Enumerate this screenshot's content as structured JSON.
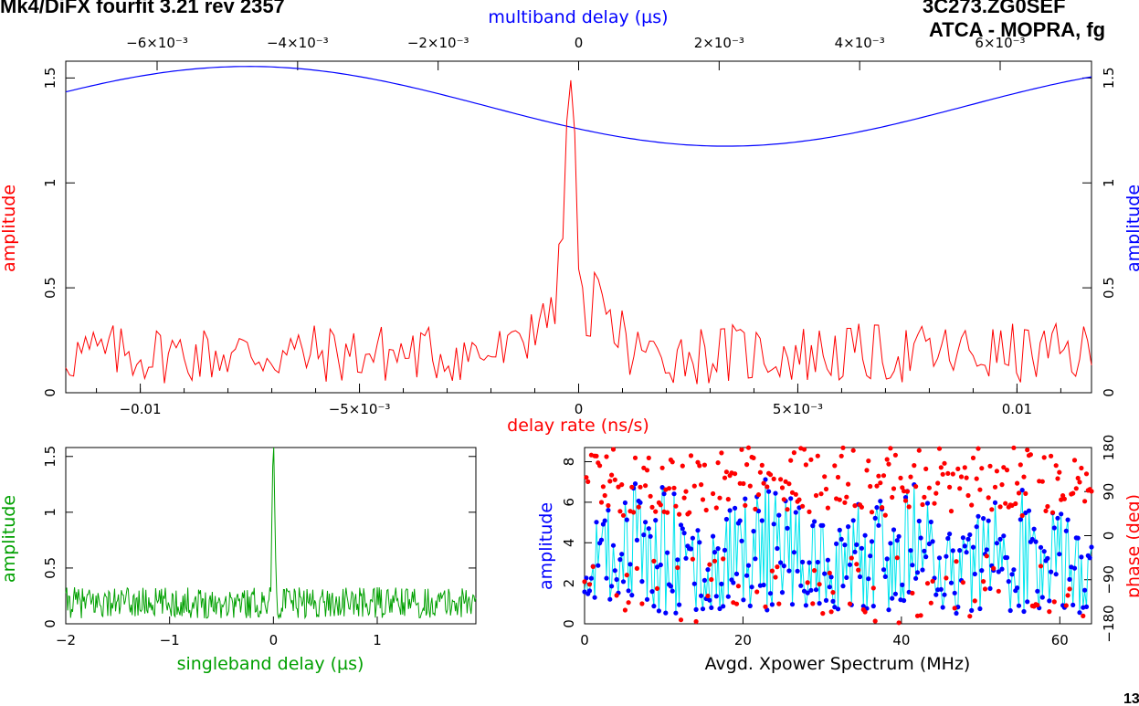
{
  "header": {
    "left_title": "Mk4/DiFX fourfit 3.21 rev 2357",
    "right_title": "3C273.ZG0SEF",
    "right_subtitle": "ATCA - MOPRA, fg",
    "corner_label": "13"
  },
  "colors": {
    "multiband": "#0000ff",
    "delay_rate": "#ff0000",
    "singleband": "#00a000",
    "xpower_amp_line": "#00e5ee",
    "xpower_amp_points": "#0000ff",
    "xpower_phase_points": "#ff0000"
  },
  "chart_data": [
    {
      "type": "line",
      "panel": "main",
      "series": [
        {
          "name": "multiband delay",
          "axis": "top",
          "xlim": [
            -0.0073,
            0.0073
          ],
          "ylim": [
            0,
            1.58
          ],
          "description_points": [
            [
              -0.0073,
              1.53
            ],
            [
              -0.0048,
              1.55
            ],
            [
              -0.0035,
              1.51
            ],
            [
              -0.002,
              1.42
            ],
            [
              0,
              1.23
            ],
            [
              0.001,
              1.19
            ],
            [
              0.0018,
              1.18
            ],
            [
              0.003,
              1.2
            ],
            [
              0.005,
              1.33
            ],
            [
              0.0073,
              1.53
            ]
          ]
        },
        {
          "name": "delay rate",
          "axis": "bottom",
          "xlim": [
            -0.0117,
            0.0117
          ],
          "ylim": [
            0,
            1.58
          ],
          "peak": {
            "x": -0.0002,
            "y": 1.57
          },
          "baseline_range": [
            0.04,
            0.33
          ]
        }
      ],
      "top_axis": {
        "label": "multiband delay (µs)",
        "ticks": [
          {
            "value": -0.006,
            "label": "−6×10⁻³"
          },
          {
            "value": -0.004,
            "label": "−4×10⁻³"
          },
          {
            "value": -0.002,
            "label": "−2×10⁻³"
          },
          {
            "value": 0,
            "label": "0"
          },
          {
            "value": 0.002,
            "label": "2×10⁻³"
          },
          {
            "value": 0.004,
            "label": "4×10⁻³"
          },
          {
            "value": 0.006,
            "label": "6×10⁻³"
          }
        ]
      },
      "bottom_axis": {
        "label": "delay rate (ns/s)",
        "ticks": [
          {
            "value": -0.01,
            "label": "−0.01"
          },
          {
            "value": -0.005,
            "label": "−5×10⁻³"
          },
          {
            "value": 0,
            "label": "0"
          },
          {
            "value": 0.005,
            "label": "5×10⁻³"
          },
          {
            "value": 0.01,
            "label": "0.01"
          }
        ]
      },
      "left_axis": {
        "label": "amplitude",
        "ticks": [
          {
            "value": 0,
            "label": "0"
          },
          {
            "value": 0.5,
            "label": "0.5"
          },
          {
            "value": 1,
            "label": "1"
          },
          {
            "value": 1.5,
            "label": "1.5"
          }
        ]
      },
      "right_axis": {
        "label": "amplitude",
        "ticks": [
          {
            "value": 0,
            "label": "0"
          },
          {
            "value": 0.5,
            "label": "0.5"
          },
          {
            "value": 1,
            "label": "1"
          },
          {
            "value": 1.5,
            "label": "1.5"
          }
        ]
      }
    },
    {
      "type": "line",
      "panel": "singleband",
      "series": [
        {
          "name": "singleband delay",
          "xlim": [
            -2,
            1.95
          ],
          "ylim": [
            0,
            1.58
          ],
          "peak": {
            "x": 0.0,
            "y": 1.58
          },
          "baseline_range": [
            0.05,
            0.42
          ]
        }
      ],
      "x_axis": {
        "label": "singleband delay (µs)",
        "ticks": [
          {
            "value": -2,
            "label": "−2"
          },
          {
            "value": -1,
            "label": "−1"
          },
          {
            "value": 0,
            "label": "0"
          },
          {
            "value": 1,
            "label": "1"
          }
        ]
      },
      "y_axis": {
        "label": "amplitude",
        "ticks": [
          {
            "value": 0,
            "label": "0"
          },
          {
            "value": 0.5,
            "label": "0.5"
          },
          {
            "value": 1,
            "label": "1"
          },
          {
            "value": 1.5,
            "label": "1.5"
          }
        ]
      }
    },
    {
      "type": "scatter",
      "panel": "xpower",
      "series": [
        {
          "name": "amplitude",
          "xlim": [
            0,
            64
          ],
          "ylim": [
            0,
            8.7
          ],
          "range": [
            0.5,
            7.2
          ]
        },
        {
          "name": "phase",
          "xlim": [
            0,
            64
          ],
          "ylim": [
            -180,
            180
          ],
          "range": [
            -180,
            180
          ]
        }
      ],
      "x_axis": {
        "label": "Avgd. Xpower Spectrum (MHz)",
        "ticks": [
          {
            "value": 0,
            "label": "0"
          },
          {
            "value": 20,
            "label": "20"
          },
          {
            "value": 40,
            "label": "40"
          },
          {
            "value": 60,
            "label": "60"
          }
        ]
      },
      "y_axis": {
        "label": "amplitude",
        "ticks": [
          {
            "value": 0,
            "label": "0"
          },
          {
            "value": 2,
            "label": "2"
          },
          {
            "value": 4,
            "label": "4"
          },
          {
            "value": 6,
            "label": "6"
          },
          {
            "value": 8,
            "label": "8"
          }
        ]
      },
      "y2_axis": {
        "label": "phase (deg)",
        "ticks": [
          {
            "value": -180,
            "label": "−180"
          },
          {
            "value": -90,
            "label": "−90"
          },
          {
            "value": 0,
            "label": "0"
          },
          {
            "value": 90,
            "label": "90"
          },
          {
            "value": 180,
            "label": "180"
          }
        ]
      }
    }
  ]
}
